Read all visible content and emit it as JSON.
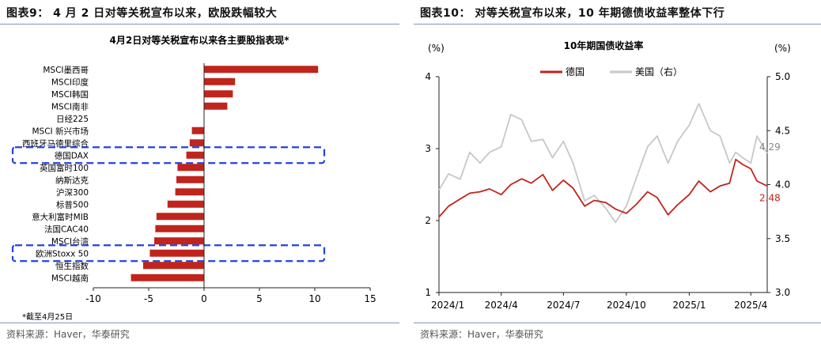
{
  "left_panel": {
    "heading": "图表9： 4 月 2 日对等关税宣布以来，欧股跌幅较大",
    "source": "资料来源：Haver，华泰研究"
  },
  "right_panel": {
    "heading": "图表10： 对等关税宣布以来，10 年期德债收益率整体下行",
    "source": "资料来源：Haver，华泰研究"
  },
  "chart_data": [
    {
      "type": "bar",
      "orientation": "horizontal",
      "title": "4月2日对等关税宣布以来各主要股指表现*",
      "footnote": "*截至4月25日",
      "categories": [
        "MSCI墨西哥",
        "MSCI印度",
        "MSCI韩国",
        "MSCI南非",
        "日经225",
        "MSCI 新兴市场",
        "西班牙马德里综合",
        "德国DAX",
        "英国富时100",
        "纳斯达克",
        "沪深300",
        "标普500",
        "意大利富时MIB",
        "法国CAC40",
        "MSCI台湾",
        "欧洲Stoxx 50",
        "恒生指数",
        "MSCI越南"
      ],
      "values": [
        10.3,
        2.8,
        2.6,
        2.1,
        0.0,
        -1.1,
        -1.3,
        -1.6,
        -2.4,
        -2.5,
        -2.6,
        -3.3,
        -4.3,
        -4.4,
        -4.5,
        -4.9,
        -5.5,
        -6.6
      ],
      "highlighted": [
        "德国DAX",
        "欧洲Stoxx 50"
      ],
      "xlim": [
        -10,
        15
      ],
      "xticks": [
        "-10",
        "-5",
        "0",
        "5",
        "10",
        "15"
      ],
      "bar_color": "#c0241b",
      "highlight_color": "#2342e0",
      "grid": false
    },
    {
      "type": "line",
      "title": "10年期国债收益率",
      "left_unit": "(%)",
      "right_unit": "(%)",
      "xticks": [
        "2024/1",
        "2024/4",
        "2024/7",
        "2024/10",
        "2025/1",
        "2025/4"
      ],
      "x_range": [
        "2024-01-01",
        "2025-04-25"
      ],
      "ylim_left": [
        1,
        4
      ],
      "yticks_left": [
        "1",
        "2",
        "3",
        "4"
      ],
      "ylim_right": [
        3.0,
        5.0
      ],
      "yticks_right": [
        "3.0",
        "3.5",
        "4.0",
        "4.5",
        "5.0"
      ],
      "grid": false,
      "legend_position": "top-left",
      "series": [
        {
          "name": "德国",
          "axis": "left",
          "color": "#c0241b",
          "end_label": "2.48",
          "x": [
            "2024-01-01",
            "2024-01-15",
            "2024-02-01",
            "2024-02-15",
            "2024-03-01",
            "2024-03-15",
            "2024-04-01",
            "2024-04-15",
            "2024-05-01",
            "2024-05-15",
            "2024-06-01",
            "2024-06-15",
            "2024-07-01",
            "2024-07-15",
            "2024-08-01",
            "2024-08-15",
            "2024-09-01",
            "2024-09-15",
            "2024-10-01",
            "2024-10-15",
            "2024-11-01",
            "2024-11-15",
            "2024-12-01",
            "2024-12-15",
            "2025-01-01",
            "2025-01-15",
            "2025-02-01",
            "2025-02-15",
            "2025-03-01",
            "2025-03-10",
            "2025-03-20",
            "2025-04-01",
            "2025-04-10",
            "2025-04-25"
          ],
          "y": [
            2.05,
            2.2,
            2.3,
            2.38,
            2.4,
            2.44,
            2.36,
            2.5,
            2.58,
            2.52,
            2.64,
            2.42,
            2.56,
            2.45,
            2.2,
            2.28,
            2.25,
            2.16,
            2.1,
            2.22,
            2.4,
            2.32,
            2.08,
            2.22,
            2.36,
            2.55,
            2.4,
            2.48,
            2.52,
            2.85,
            2.78,
            2.72,
            2.55,
            2.48
          ]
        },
        {
          "name": "美国（右）",
          "axis": "right",
          "color": "#c7c7c7",
          "end_label": "4.29",
          "x": [
            "2024-01-01",
            "2024-01-15",
            "2024-02-01",
            "2024-02-15",
            "2024-03-01",
            "2024-03-15",
            "2024-04-01",
            "2024-04-15",
            "2024-05-01",
            "2024-05-15",
            "2024-06-01",
            "2024-06-15",
            "2024-07-01",
            "2024-07-15",
            "2024-08-01",
            "2024-08-15",
            "2024-09-01",
            "2024-09-15",
            "2024-10-01",
            "2024-10-15",
            "2024-11-01",
            "2024-11-15",
            "2024-12-01",
            "2024-12-15",
            "2025-01-01",
            "2025-01-15",
            "2025-02-01",
            "2025-02-15",
            "2025-03-01",
            "2025-03-10",
            "2025-03-20",
            "2025-04-01",
            "2025-04-10",
            "2025-04-25"
          ],
          "y": [
            3.95,
            4.1,
            4.05,
            4.3,
            4.2,
            4.3,
            4.35,
            4.65,
            4.6,
            4.4,
            4.42,
            4.25,
            4.4,
            4.2,
            3.85,
            3.9,
            3.78,
            3.65,
            3.8,
            4.05,
            4.35,
            4.45,
            4.2,
            4.4,
            4.55,
            4.75,
            4.5,
            4.45,
            4.2,
            4.3,
            4.25,
            4.2,
            4.45,
            4.29
          ]
        }
      ]
    }
  ]
}
